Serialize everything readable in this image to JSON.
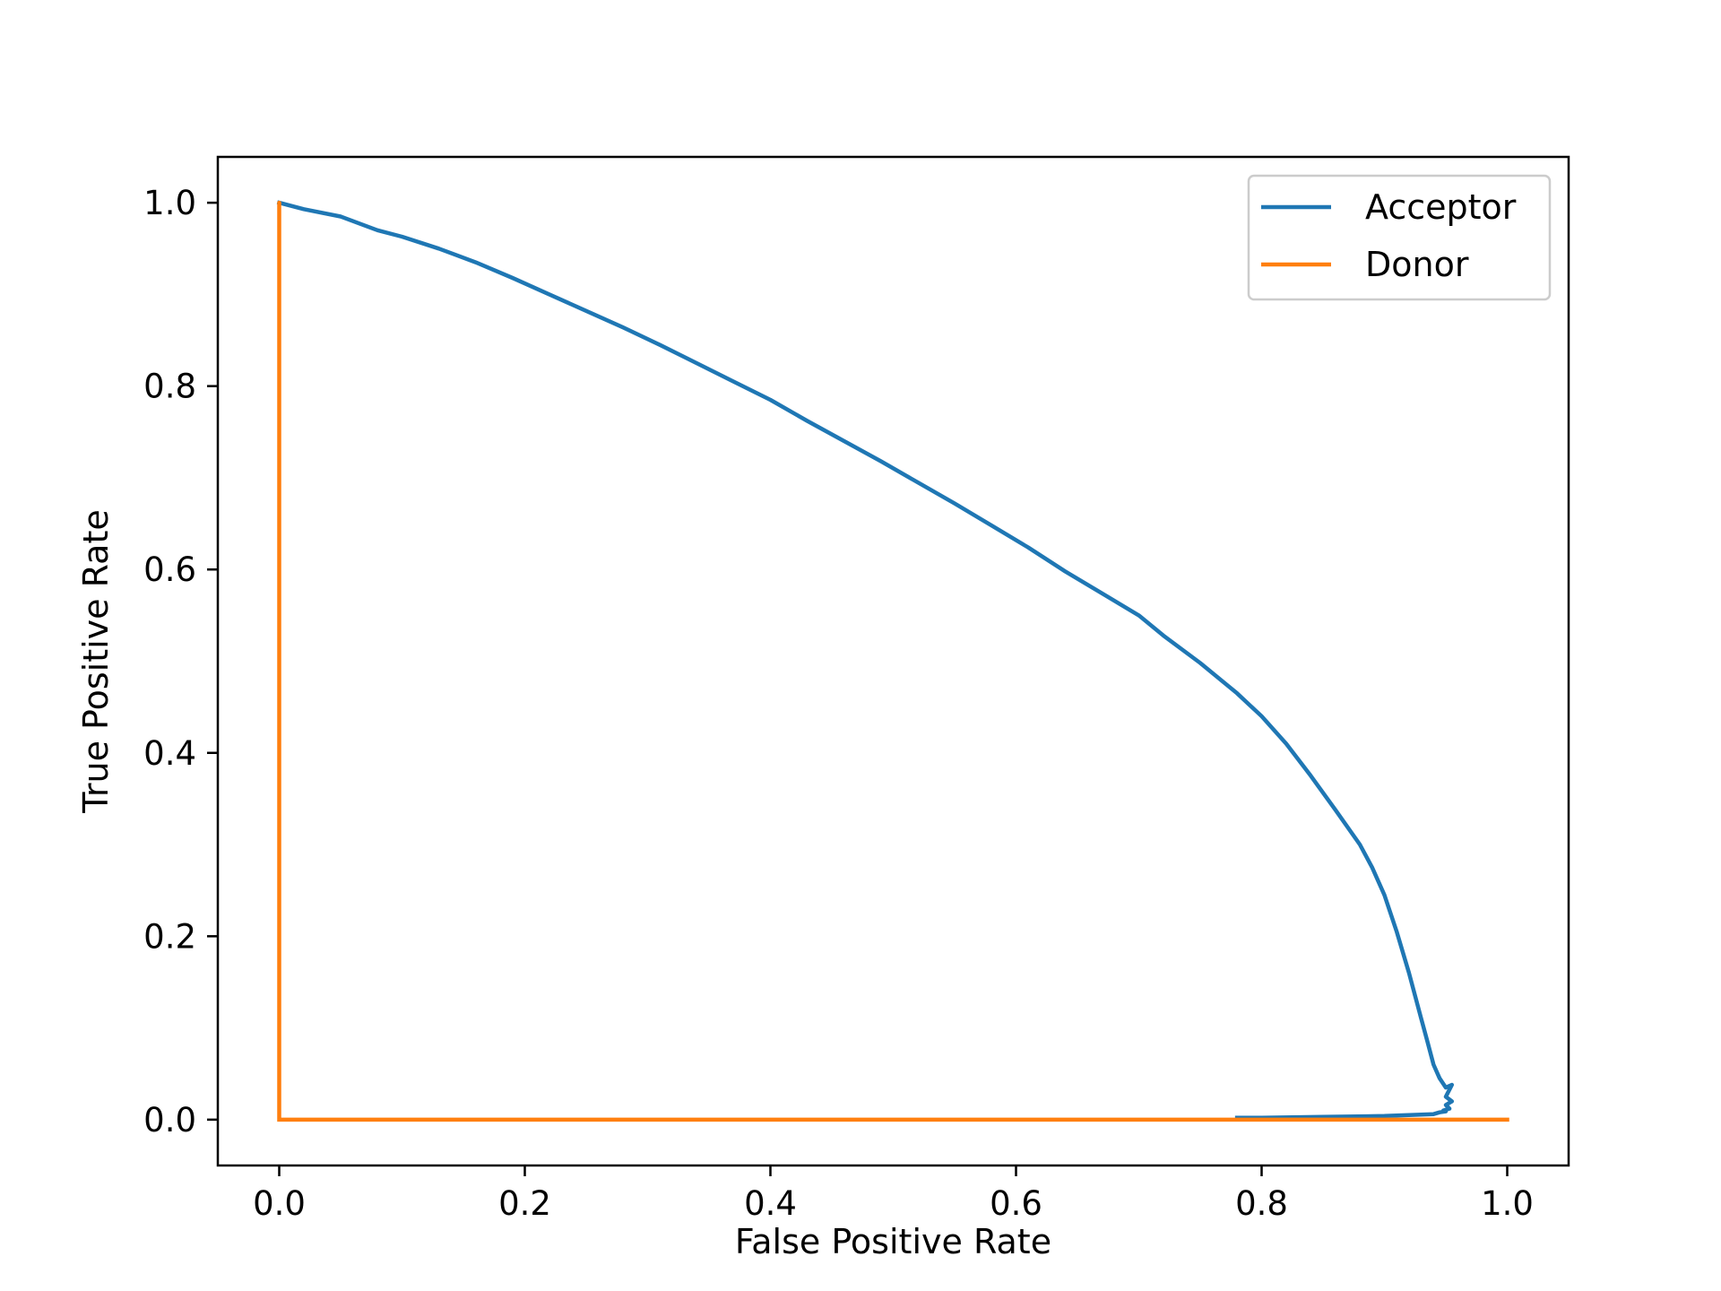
{
  "chart_data": {
    "type": "line",
    "title": "",
    "xlabel": "False Positive Rate",
    "ylabel": "True Positive Rate",
    "xlim": [
      -0.05,
      1.05
    ],
    "ylim": [
      -0.05,
      1.05
    ],
    "xticks": [
      0.0,
      0.2,
      0.4,
      0.6,
      0.8,
      1.0
    ],
    "xtick_labels": [
      "0.0",
      "0.2",
      "0.4",
      "0.6",
      "0.8",
      "1.0"
    ],
    "yticks": [
      0.0,
      0.2,
      0.4,
      0.6,
      0.8,
      1.0
    ],
    "ytick_labels": [
      "0.0",
      "0.2",
      "0.4",
      "0.6",
      "0.8",
      "1.0"
    ],
    "grid": false,
    "legend_position": "upper right",
    "series": [
      {
        "name": "Acceptor",
        "color": "#1f77b4",
        "x": [
          0.0,
          0.02,
          0.05,
          0.08,
          0.1,
          0.13,
          0.16,
          0.19,
          0.22,
          0.25,
          0.28,
          0.31,
          0.34,
          0.37,
          0.4,
          0.43,
          0.46,
          0.49,
          0.52,
          0.55,
          0.58,
          0.61,
          0.64,
          0.67,
          0.7,
          0.72,
          0.75,
          0.78,
          0.8,
          0.82,
          0.84,
          0.86,
          0.88,
          0.89,
          0.9,
          0.91,
          0.92,
          0.93,
          0.935,
          0.94,
          0.945,
          0.95,
          0.955,
          0.95,
          0.955,
          0.95,
          0.953,
          0.948,
          0.95,
          0.945,
          0.94,
          0.9,
          0.85,
          0.8,
          0.78
        ],
        "y": [
          1.0,
          0.993,
          0.985,
          0.97,
          0.963,
          0.95,
          0.935,
          0.918,
          0.9,
          0.882,
          0.864,
          0.845,
          0.825,
          0.805,
          0.785,
          0.762,
          0.74,
          0.718,
          0.695,
          0.672,
          0.648,
          0.624,
          0.598,
          0.574,
          0.55,
          0.528,
          0.498,
          0.465,
          0.44,
          0.41,
          0.375,
          0.338,
          0.3,
          0.275,
          0.245,
          0.205,
          0.16,
          0.11,
          0.085,
          0.06,
          0.045,
          0.035,
          0.038,
          0.025,
          0.02,
          0.016,
          0.012,
          0.01,
          0.009,
          0.008,
          0.006,
          0.004,
          0.003,
          0.002,
          0.002
        ]
      },
      {
        "name": "Donor",
        "color": "#ff7f0e",
        "x": [
          0.0,
          0.0,
          0.0,
          1.0
        ],
        "y": [
          0.0,
          1.0,
          0.0,
          0.0
        ]
      }
    ]
  }
}
